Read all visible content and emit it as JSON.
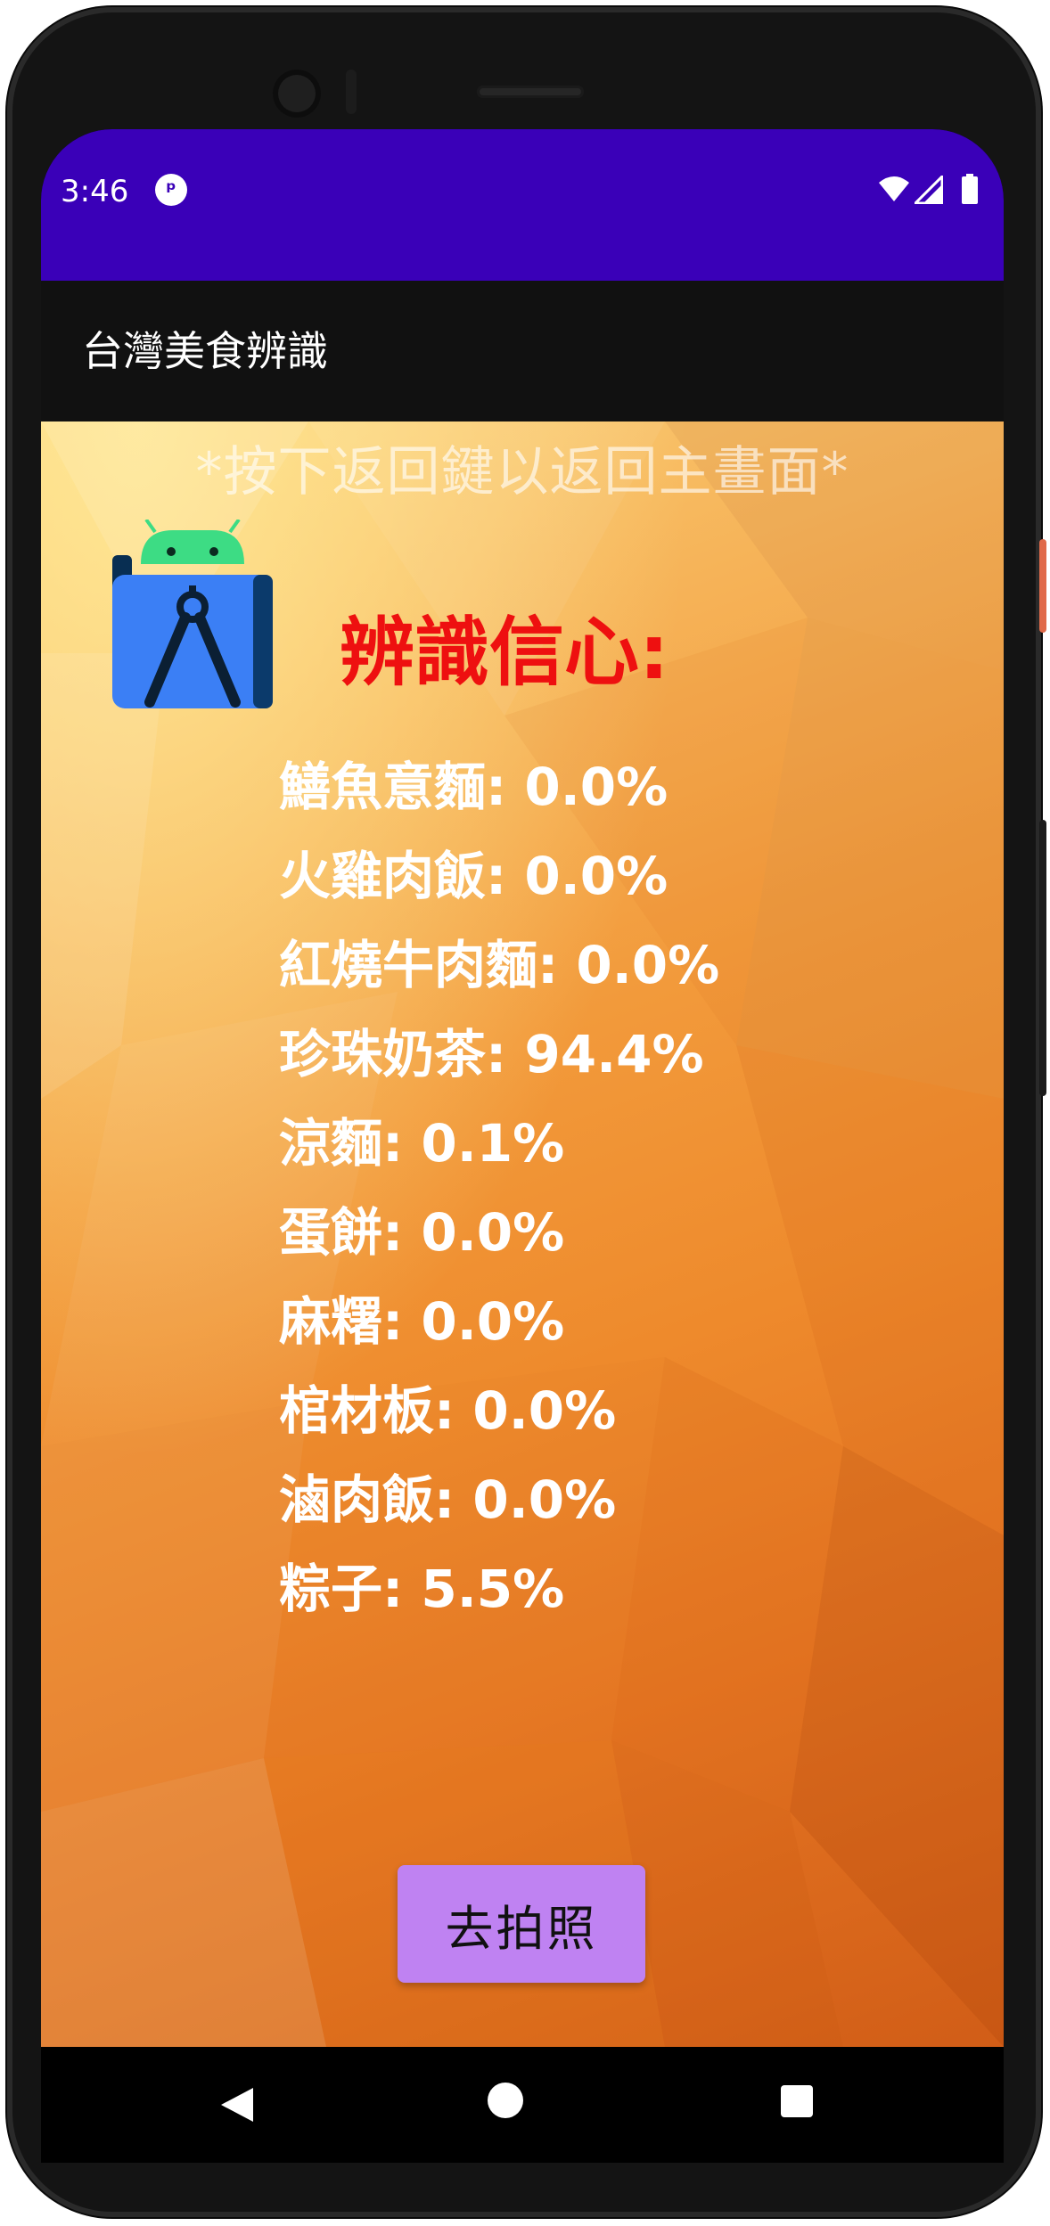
{
  "status_bar": {
    "time": "3:46",
    "app_icon": "notification-app-icon",
    "icons": [
      "wifi-icon",
      "cell-signal-icon",
      "battery-icon"
    ]
  },
  "app_bar": {
    "title": "台灣美食辨識"
  },
  "content": {
    "hint": "*按下返回鍵以返回主畫面*",
    "confidence_title": "辨識信心:",
    "results": [
      {
        "label": "鱔魚意麵: 0.0%"
      },
      {
        "label": "火雞肉飯: 0.0%"
      },
      {
        "label": "紅燒牛肉麵: 0.0%"
      },
      {
        "label": "珍珠奶茶: 94.4%"
      },
      {
        "label": "涼麵: 0.1%"
      },
      {
        "label": "蛋餅: 0.0%"
      },
      {
        "label": "麻糬: 0.0%"
      },
      {
        "label": "棺材板: 0.0%"
      },
      {
        "label": "滷肉飯: 0.0%"
      },
      {
        "label": "粽子: 5.5%"
      }
    ],
    "photo_button": "去拍照"
  },
  "colors": {
    "status_bar": "#3a00b8",
    "app_bar": "#111111",
    "confidence_title": "#ee1010",
    "button": "#bf82f2"
  },
  "nav_bar": {
    "icons": [
      "back-icon",
      "home-icon",
      "recents-icon"
    ]
  }
}
